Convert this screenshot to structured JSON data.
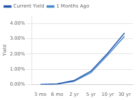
{
  "chart_data": {
    "type": "line",
    "categories": [
      "3 mo",
      "6 mo",
      "2 yr",
      "5 yr",
      "10 yr",
      "30 yr"
    ],
    "series": [
      {
        "name": "Current Yield",
        "color": "#2255AA",
        "values": [
          0.01,
          0.05,
          0.27,
          0.88,
          2.05,
          3.37
        ]
      },
      {
        "name": "1 Months Ago",
        "color": "#4488CC",
        "values": [
          0.01,
          0.04,
          0.22,
          0.78,
          1.93,
          3.16
        ]
      }
    ],
    "ylabel": "Yield",
    "ylim": [
      0,
      4.5
    ],
    "yticks": [
      {
        "value": 0,
        "label": "0.00%"
      },
      {
        "value": 1,
        "label": "1.00%"
      },
      {
        "value": 2,
        "label": "2.00%"
      },
      {
        "value": 3,
        "label": "3.00%"
      },
      {
        "value": 4,
        "label": "4.00%"
      }
    ],
    "grid": true,
    "legend": "upper left"
  }
}
